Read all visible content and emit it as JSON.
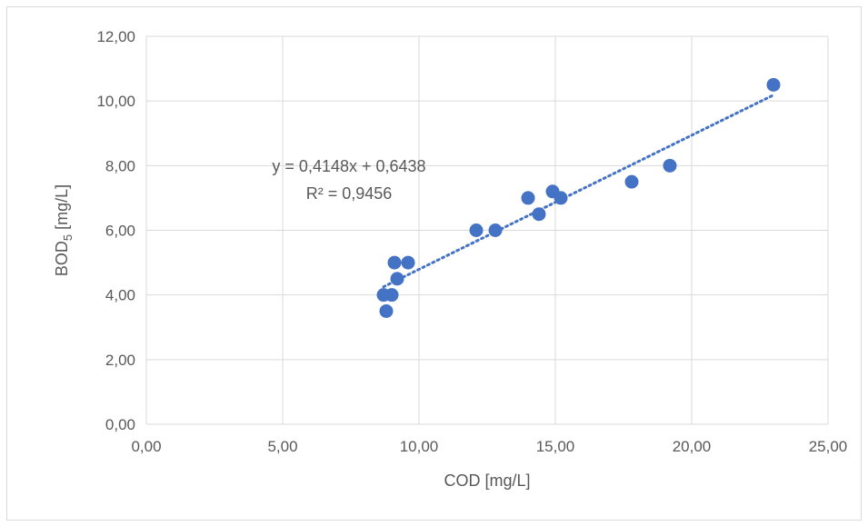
{
  "chart_data": {
    "type": "scatter",
    "xlabel": "COD [mg/L]",
    "ylabel_main": "BOD",
    "ylabel_subscript": "5",
    "ylabel_suffix": " [mg/L]",
    "xlim": [
      0,
      25
    ],
    "ylim": [
      0,
      12
    ],
    "x_ticks": [
      0,
      5,
      10,
      15,
      20,
      25
    ],
    "x_tick_labels": [
      "0,00",
      "5,00",
      "10,00",
      "15,00",
      "20,00",
      "25,00"
    ],
    "y_ticks": [
      0,
      2,
      4,
      6,
      8,
      10,
      12
    ],
    "y_tick_labels": [
      "0,00",
      "2,00",
      "4,00",
      "6,00",
      "8,00",
      "10,00",
      "12,00"
    ],
    "grid": true,
    "legend": "none",
    "series": [
      {
        "color": "#4472c4",
        "x": [
          8.7,
          8.8,
          9.0,
          9.1,
          9.2,
          9.6,
          12.1,
          12.8,
          14.0,
          14.4,
          14.9,
          15.2,
          17.8,
          19.2,
          23.0
        ],
        "y": [
          4.0,
          3.5,
          4.0,
          5.0,
          4.5,
          5.0,
          6.0,
          6.0,
          7.0,
          6.5,
          7.2,
          7.0,
          7.5,
          8.0,
          10.5
        ]
      }
    ],
    "trendline": {
      "type": "linear",
      "style": "dotted",
      "color": "#4472c4",
      "slope": 0.4148,
      "intercept": 0.6438,
      "x_range": [
        8.7,
        23.0
      ],
      "equation_text": "y = 0,4148x + 0,6438",
      "r2_text": "R² = 0,9456"
    }
  }
}
